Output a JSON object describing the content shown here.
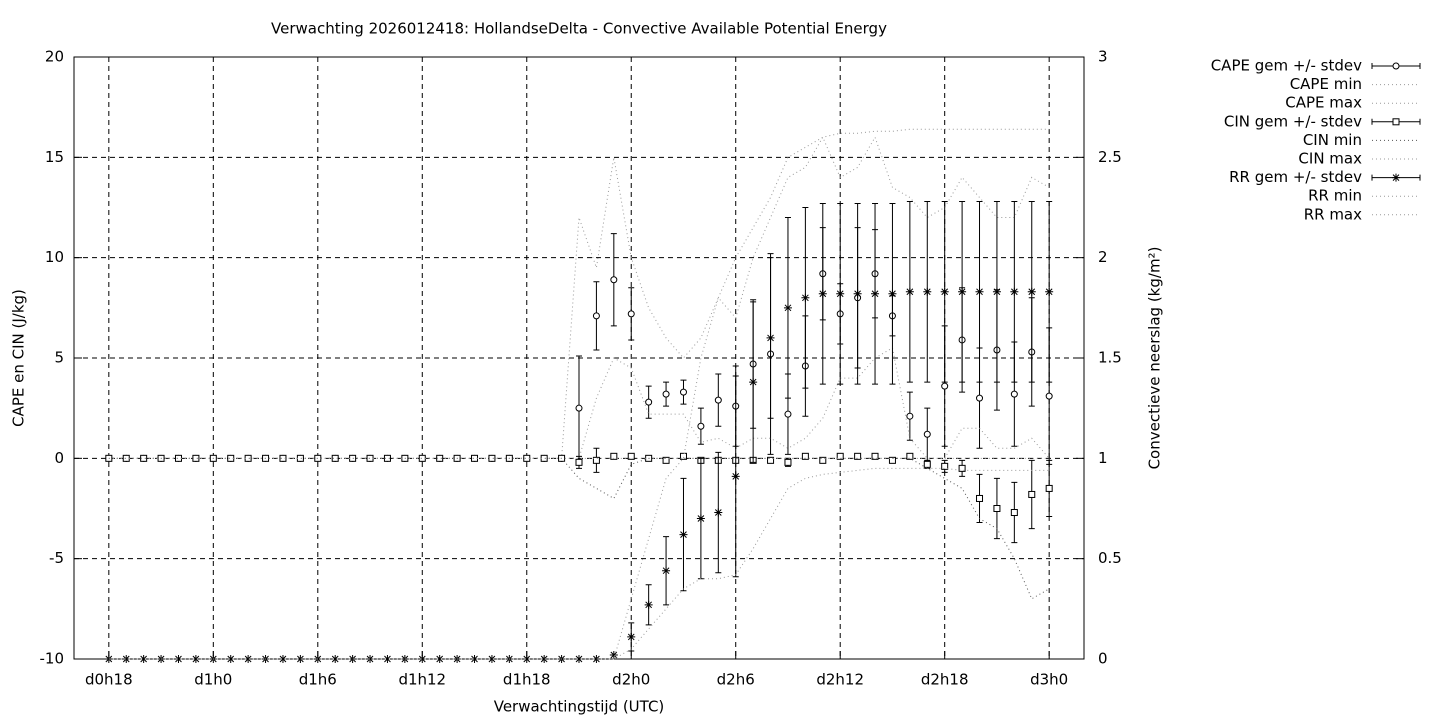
{
  "chart_data": {
    "type": "errorbars",
    "title": "Verwachting 2026012418: HollandseDelta - Convective Available Potential Energy",
    "xlabel": "Verwachtingstijd (UTC)",
    "ylabel": "CAPE en CIN (J/kg)",
    "y2label": "Convectieve neerslag (kg/m²)",
    "x": [
      18,
      19,
      20,
      21,
      22,
      23,
      24,
      25,
      26,
      27,
      28,
      29,
      30,
      31,
      32,
      33,
      34,
      35,
      36,
      37,
      38,
      39,
      40,
      41,
      42,
      43,
      44,
      45,
      46,
      47,
      48,
      49,
      50,
      51,
      52,
      53,
      54,
      55,
      56,
      57,
      58,
      59,
      60,
      61,
      62,
      63,
      64,
      65,
      66,
      67,
      68,
      69,
      70,
      71,
      72
    ],
    "xlim": [
      16,
      74
    ],
    "xticks": [
      {
        "value": 18,
        "label": "d0h18"
      },
      {
        "value": 24,
        "label": "d1h0"
      },
      {
        "value": 30,
        "label": "d1h6"
      },
      {
        "value": 36,
        "label": "d1h12"
      },
      {
        "value": 42,
        "label": "d1h18"
      },
      {
        "value": 48,
        "label": "d2h0"
      },
      {
        "value": 54,
        "label": "d2h6"
      },
      {
        "value": 60,
        "label": "d2h12"
      },
      {
        "value": 66,
        "label": "d2h18"
      },
      {
        "value": 72,
        "label": "d3h0"
      }
    ],
    "ylim": [
      -10,
      20
    ],
    "yticks": [
      -10,
      -5,
      0,
      5,
      10,
      15,
      20
    ],
    "y2lim": [
      0,
      3
    ],
    "y2ticks": [
      0,
      0.5,
      1,
      1.5,
      2,
      2.5,
      3
    ],
    "grid": true,
    "legend": "outside-top-right",
    "series": [
      {
        "name": "CAPE gem +/- stdev",
        "color": "#000000",
        "style": "errorbars",
        "marker": "circle",
        "values": [
          0,
          0,
          0,
          0,
          0,
          0,
          0,
          0,
          0,
          0,
          0,
          0,
          0,
          0,
          0,
          0,
          0,
          0,
          0,
          0,
          0,
          0,
          0,
          0,
          0,
          0,
          0,
          2.5,
          7.1,
          8.9,
          7.2,
          2.8,
          3.2,
          3.3,
          1.6,
          2.9,
          2.6,
          4.7,
          5.2,
          2.2,
          4.6,
          9.2,
          7.2,
          8.0,
          9.2,
          7.1,
          2.1,
          1.2,
          3.6,
          5.9,
          3.0,
          5.4,
          3.2,
          5.3,
          3.1
        ],
        "errors": [
          0,
          0,
          0,
          0,
          0,
          0,
          0,
          0,
          0,
          0,
          0,
          0,
          0,
          0,
          0,
          0,
          0,
          0,
          0,
          0,
          0,
          0,
          0,
          0,
          0,
          0,
          0,
          2.6,
          1.7,
          2.3,
          1.3,
          0.8,
          0.6,
          0.6,
          0.9,
          1.3,
          2,
          3.2,
          5,
          2,
          2.5,
          2.3,
          1.5,
          3.5,
          2.2,
          1,
          1.2,
          1.3,
          3,
          2.6,
          2.5,
          3,
          2.6,
          2.7,
          3.4
        ]
      },
      {
        "name": "CAPE min",
        "color": "#999999",
        "style": "dotted",
        "values": [
          0,
          0,
          0,
          0,
          0,
          0,
          0,
          0,
          0,
          0,
          0,
          0,
          0,
          0,
          0,
          0,
          0,
          0,
          0,
          0,
          0,
          0,
          0,
          0,
          0,
          0,
          0,
          0,
          3,
          5,
          4.5,
          2.2,
          2.2,
          2.2,
          0.8,
          1,
          0.5,
          1,
          1,
          0.5,
          1,
          2,
          4,
          4,
          5,
          5.5,
          1,
          0,
          0,
          1.5,
          1.5,
          0.5,
          0.5,
          1,
          0
        ]
      },
      {
        "name": "CAPE max",
        "color": "#999999",
        "style": "dotted",
        "values": [
          0,
          0,
          0,
          0,
          0,
          0,
          0,
          0,
          0,
          0,
          0,
          0,
          0,
          0,
          0,
          0,
          0,
          0,
          0,
          0,
          0,
          0,
          0,
          0,
          0,
          0,
          0,
          12,
          9.5,
          15,
          10,
          7.5,
          6,
          5,
          6,
          8,
          7,
          10,
          12,
          14,
          14.5,
          16,
          14,
          14.5,
          16,
          13.5,
          13,
          12,
          12.5,
          14,
          13,
          12,
          12,
          14,
          13.5
        ]
      },
      {
        "name": "CIN gem +/- stdev",
        "color": "#000000",
        "style": "errorbars",
        "marker": "square",
        "values": [
          0,
          0,
          0,
          0,
          0,
          0,
          0,
          0,
          0,
          0,
          0,
          0,
          0,
          0,
          0,
          0,
          0,
          0,
          0,
          0,
          0,
          0,
          0,
          0,
          0,
          0,
          0,
          -0.2,
          -0.1,
          0.1,
          0.1,
          0,
          -0.1,
          0.1,
          -0.1,
          -0.1,
          -0.1,
          -0.1,
          -0.1,
          -0.2,
          0.1,
          -0.1,
          0.1,
          0.1,
          0.1,
          -0.1,
          0.1,
          -0.3,
          -0.4,
          -0.5,
          -2.0,
          -2.5,
          -2.7,
          -1.8,
          -1.5
        ],
        "errors": [
          0,
          0,
          0,
          0,
          0,
          0,
          0,
          0,
          0,
          0,
          0,
          0,
          0,
          0,
          0,
          0,
          0,
          0,
          0,
          0,
          0,
          0,
          0,
          0,
          0,
          0,
          0,
          0.3,
          0.6,
          0,
          0,
          0,
          0,
          0,
          0,
          0,
          0,
          0,
          0,
          0.2,
          0,
          0,
          0,
          0,
          0,
          0,
          0,
          0.2,
          0.3,
          0.4,
          1.2,
          1.5,
          1.5,
          1.7,
          1.4
        ]
      },
      {
        "name": "CIN min",
        "color": "#555555",
        "style": "dotted",
        "values": [
          0,
          0,
          0,
          0,
          0,
          0,
          0,
          0,
          0,
          0,
          0,
          0,
          0,
          0,
          0,
          0,
          0,
          0,
          0,
          0,
          0,
          0,
          0,
          0,
          0,
          0,
          0,
          -1,
          -1.5,
          -2,
          -0.3,
          0,
          0,
          0,
          0,
          0,
          0,
          0,
          0,
          0,
          0,
          0,
          0,
          0,
          0,
          0,
          0,
          -0.5,
          -1,
          -1.5,
          -3,
          -3.5,
          -5,
          -7,
          -6.5
        ]
      },
      {
        "name": "CIN max",
        "color": "#999999",
        "style": "dotted",
        "values": [
          0,
          0,
          0,
          0,
          0,
          0,
          0,
          0,
          0,
          0,
          0,
          0,
          0,
          0,
          0,
          0,
          0,
          0,
          0,
          0,
          0,
          0,
          0,
          0,
          0,
          0,
          0,
          0,
          0,
          0,
          0,
          0,
          0,
          0,
          0,
          0,
          0,
          0,
          0,
          0,
          0,
          0,
          0,
          0,
          0,
          0,
          0,
          0,
          0,
          0,
          0,
          0,
          0,
          0,
          0
        ]
      },
      {
        "name": "RR gem +/- stdev",
        "color": "#000000",
        "style": "errorbars",
        "marker": "star",
        "axis": "y2",
        "values": [
          0,
          0,
          0,
          0,
          0,
          0,
          0,
          0,
          0,
          0,
          0,
          0,
          0,
          0,
          0,
          0,
          0,
          0,
          0,
          0,
          0,
          0,
          0,
          0,
          0,
          0,
          0,
          0,
          0,
          0.02,
          0.11,
          0.27,
          0.44,
          0.62,
          0.7,
          0.73,
          0.91,
          1.38,
          1.6,
          1.75,
          1.8,
          1.82,
          1.82,
          1.82,
          1.82,
          1.82,
          1.83,
          1.83,
          1.83,
          1.83,
          1.83,
          1.83,
          1.83,
          1.83,
          1.83
        ],
        "errors": [
          0,
          0,
          0,
          0,
          0,
          0,
          0,
          0,
          0,
          0,
          0,
          0,
          0,
          0,
          0,
          0,
          0,
          0,
          0,
          0,
          0,
          0,
          0,
          0,
          0,
          0,
          0,
          0,
          0,
          0,
          0.07,
          0.1,
          0.17,
          0.28,
          0.3,
          0.3,
          0.5,
          0.4,
          0.4,
          0.45,
          0.45,
          0.45,
          0.45,
          0.45,
          0.45,
          0.45,
          0.45,
          0.45,
          0.45,
          0.45,
          0.45,
          0.45,
          0.45,
          0.45,
          0.45
        ]
      },
      {
        "name": "RR min",
        "color": "#999999",
        "style": "dotted",
        "axis": "y2",
        "values": [
          0,
          0,
          0,
          0,
          0,
          0,
          0,
          0,
          0,
          0,
          0,
          0,
          0,
          0,
          0,
          0,
          0,
          0,
          0,
          0,
          0,
          0,
          0,
          0,
          0,
          0,
          0,
          0,
          0,
          0,
          0.05,
          0.15,
          0.25,
          0.35,
          0.4,
          0.4,
          0.42,
          0.55,
          0.7,
          0.85,
          0.9,
          0.92,
          0.93,
          0.94,
          0.95,
          0.95,
          0.95,
          0.95,
          0.95,
          0.94,
          0.94,
          0.94,
          0.94,
          0.94,
          0.94
        ]
      },
      {
        "name": "RR max",
        "color": "#999999",
        "style": "dotted",
        "axis": "y2",
        "values": [
          0,
          0,
          0,
          0,
          0,
          0,
          0,
          0,
          0,
          0,
          0,
          0,
          0,
          0,
          0,
          0,
          0,
          0,
          0,
          0,
          0,
          0,
          0,
          0,
          0,
          0,
          0,
          0,
          0,
          0,
          0.3,
          0.6,
          0.9,
          1.0,
          1.5,
          1.8,
          2.0,
          2.15,
          2.3,
          2.5,
          2.55,
          2.6,
          2.62,
          2.62,
          2.63,
          2.63,
          2.64,
          2.64,
          2.64,
          2.64,
          2.64,
          2.64,
          2.64,
          2.64,
          2.64
        ]
      }
    ]
  }
}
